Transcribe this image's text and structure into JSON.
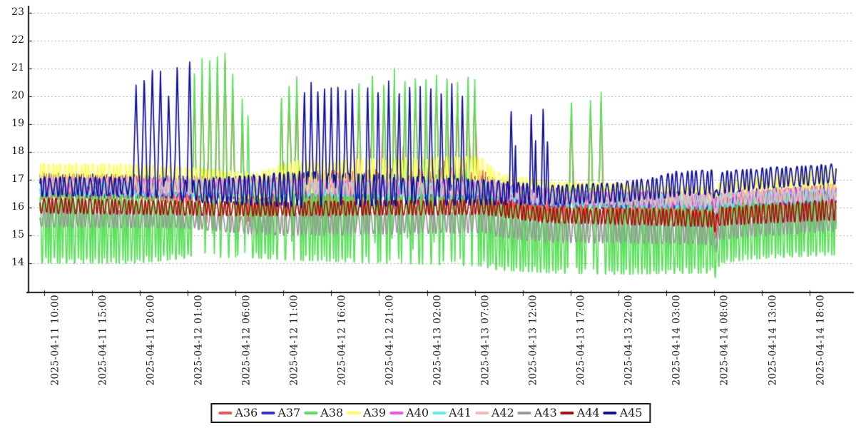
{
  "chart_data": {
    "type": "line",
    "title": "",
    "xlabel": "",
    "ylabel": "",
    "grid": "horizontal-dashed",
    "legend_position": "bottom-center",
    "ylim": [
      13.0,
      23.2
    ],
    "yticks": [
      23,
      22,
      21,
      20,
      19,
      18,
      17,
      16,
      15,
      14
    ],
    "xtick_interval_hours": 5,
    "t_range_hours": [
      -0.45,
      82.8
    ],
    "xticks": [
      "2025-04-11 10:00",
      "2025-04-11 15:00",
      "2025-04-11 20:00",
      "2025-04-12 01:00",
      "2025-04-12 06:00",
      "2025-04-12 11:00",
      "2025-04-12 16:00",
      "2025-04-12 21:00",
      "2025-04-13 02:00",
      "2025-04-13 07:00",
      "2025-04-13 12:00",
      "2025-04-13 17:00",
      "2025-04-13 22:00",
      "2025-04-14 03:00",
      "2025-04-14 08:00",
      "2025-04-14 13:00",
      "2025-04-14 18:00"
    ],
    "axis_color": "#161616",
    "gridline_color": "#ababab",
    "series": [
      {
        "name": "A36",
        "color": "#ee5555",
        "osc_period_h": 0.24,
        "phase": 0.0,
        "envelope": [
          [
            -0.5,
            16.3,
            17.2
          ],
          [
            9.5,
            16.3,
            17.15
          ],
          [
            15.0,
            16.1,
            17.0
          ],
          [
            15.5,
            15.35,
            16.6
          ],
          [
            21.3,
            15.4,
            16.6
          ],
          [
            22.0,
            15.7,
            16.9
          ],
          [
            26.5,
            15.6,
            17.3
          ],
          [
            45.5,
            15.9,
            17.45
          ],
          [
            47.5,
            15.8,
            16.9
          ],
          [
            50,
            15.6,
            16.6
          ],
          [
            53,
            15.5,
            16.5
          ],
          [
            58,
            15.5,
            16.45
          ],
          [
            65,
            15.45,
            16.35
          ],
          [
            69.9,
            15.35,
            16.25
          ],
          [
            70.2,
            14.85,
            15.6
          ],
          [
            70.55,
            15.5,
            16.4
          ],
          [
            74,
            15.65,
            16.55
          ],
          [
            78,
            15.75,
            16.7
          ],
          [
            82.8,
            15.9,
            16.85
          ]
        ],
        "spikes": [
          [
            15.7,
            20.3,
            0.28
          ],
          [
            16.5,
            20.75,
            0.28
          ],
          [
            17.3,
            20.9,
            0.28
          ],
          [
            18.1,
            21.1,
            0.28
          ],
          [
            18.9,
            21.3,
            0.28
          ],
          [
            19.7,
            20.4,
            0.28
          ],
          [
            20.7,
            19.3,
            0.26
          ],
          [
            24.8,
            19.6,
            0.28
          ],
          [
            25.6,
            20.1,
            0.28
          ],
          [
            26.4,
            20.25,
            0.28
          ],
          [
            32.9,
            20.2,
            0.26
          ],
          [
            34.3,
            20.45,
            0.26
          ],
          [
            35.5,
            20.2,
            0.26
          ],
          [
            36.6,
            20.5,
            0.26
          ],
          [
            37.7,
            20.3,
            0.26
          ],
          [
            38.8,
            20.45,
            0.26
          ],
          [
            39.9,
            20.2,
            0.26
          ],
          [
            41.0,
            20.55,
            0.26
          ],
          [
            42.1,
            20.35,
            0.26
          ],
          [
            43.2,
            20.1,
            0.26
          ],
          [
            44.3,
            20.4,
            0.26
          ],
          [
            45.0,
            20.2,
            0.26
          ],
          [
            55.1,
            19.55,
            0.3
          ],
          [
            57.1,
            19.7,
            0.3
          ],
          [
            58.2,
            19.8,
            0.3
          ]
        ]
      },
      {
        "name": "A37",
        "color": "#3535cd",
        "osc_period_h": 0.5,
        "phase": 1.1,
        "envelope": [
          [
            -0.5,
            16.35,
            17.25
          ],
          [
            21,
            16.3,
            17.1
          ],
          [
            26.5,
            16.35,
            17.25
          ],
          [
            46,
            16.3,
            17.15
          ],
          [
            50,
            16.1,
            16.8
          ],
          [
            53,
            16.0,
            16.7
          ],
          [
            69.9,
            15.9,
            16.55
          ],
          [
            70.2,
            15.5,
            16.2
          ],
          [
            70.6,
            15.95,
            16.6
          ],
          [
            82.8,
            16.15,
            16.85
          ]
        ],
        "spikes": []
      },
      {
        "name": "A38",
        "color": "#5ce05c",
        "osc_period_h": 0.31,
        "phase": 2.3,
        "envelope": [
          [
            -0.5,
            14.0,
            16.6
          ],
          [
            9.5,
            14.0,
            16.55
          ],
          [
            15.4,
            14.2,
            16.2
          ],
          [
            21.5,
            14.2,
            16.3
          ],
          [
            26.5,
            14.1,
            16.9
          ],
          [
            45.5,
            13.9,
            17.0
          ],
          [
            47.5,
            13.75,
            16.2
          ],
          [
            53,
            13.65,
            16.0
          ],
          [
            60,
            13.6,
            16.05
          ],
          [
            69.9,
            13.65,
            16.1
          ],
          [
            70.2,
            13.45,
            14.7
          ],
          [
            70.75,
            14.0,
            16.25
          ],
          [
            74,
            14.15,
            16.4
          ],
          [
            82.8,
            14.3,
            16.6
          ]
        ],
        "spikes": [
          [
            15.7,
            21.0,
            0.3
          ],
          [
            16.5,
            21.35,
            0.3
          ],
          [
            17.3,
            21.5,
            0.3
          ],
          [
            18.1,
            21.7,
            0.3
          ],
          [
            18.9,
            21.55,
            0.3
          ],
          [
            19.7,
            21.05,
            0.3
          ],
          [
            20.7,
            19.9,
            0.28
          ],
          [
            21.3,
            19.3,
            0.25
          ],
          [
            24.8,
            20.1,
            0.3
          ],
          [
            25.6,
            20.6,
            0.3
          ],
          [
            26.4,
            20.7,
            0.3
          ],
          [
            32.9,
            20.7,
            0.28
          ],
          [
            34.3,
            20.9,
            0.28
          ],
          [
            35.5,
            20.6,
            0.28
          ],
          [
            36.6,
            21.0,
            0.28
          ],
          [
            37.7,
            20.7,
            0.28
          ],
          [
            38.8,
            20.9,
            0.28
          ],
          [
            39.9,
            20.6,
            0.28
          ],
          [
            41.0,
            21.05,
            0.28
          ],
          [
            42.1,
            20.8,
            0.28
          ],
          [
            43.2,
            20.5,
            0.28
          ],
          [
            44.3,
            20.85,
            0.28
          ],
          [
            45.0,
            20.6,
            0.28
          ],
          [
            55.1,
            19.9,
            0.35
          ],
          [
            57.1,
            20.05,
            0.32
          ],
          [
            58.2,
            20.15,
            0.32
          ]
        ]
      },
      {
        "name": "A39",
        "color": "#ffff55",
        "osc_period_h": 0.42,
        "phase": 0.7,
        "envelope": [
          [
            -0.5,
            16.75,
            17.6
          ],
          [
            9.5,
            16.75,
            17.55
          ],
          [
            15.4,
            16.5,
            17.45
          ],
          [
            21.8,
            16.3,
            17.25
          ],
          [
            26.5,
            16.45,
            17.7
          ],
          [
            45.5,
            16.9,
            17.85
          ],
          [
            47.5,
            16.55,
            17.25
          ],
          [
            50,
            16.4,
            17.1
          ],
          [
            53,
            16.3,
            16.95
          ],
          [
            58,
            16.25,
            16.9
          ],
          [
            65,
            16.2,
            16.8
          ],
          [
            69.9,
            16.15,
            16.75
          ],
          [
            70.2,
            15.95,
            16.5
          ],
          [
            70.6,
            16.3,
            16.95
          ],
          [
            74,
            16.45,
            17.1
          ],
          [
            82.8,
            16.6,
            17.4
          ]
        ],
        "spikes": []
      },
      {
        "name": "A40",
        "color": "#ee55ee",
        "osc_period_h": 0.55,
        "phase": 3.1,
        "envelope": [
          [
            -0.5,
            16.5,
            17.05
          ],
          [
            46,
            16.4,
            16.95
          ],
          [
            53,
            16.1,
            16.6
          ],
          [
            69.9,
            16.0,
            16.5
          ],
          [
            70.2,
            15.8,
            16.35
          ],
          [
            70.6,
            16.05,
            16.55
          ],
          [
            82.8,
            16.2,
            16.75
          ]
        ],
        "spikes": []
      },
      {
        "name": "A41",
        "color": "#66eeee",
        "osc_period_h": 0.6,
        "phase": 4.2,
        "envelope": [
          [
            -0.5,
            16.45,
            16.95
          ],
          [
            46,
            16.35,
            16.9
          ],
          [
            53,
            16.05,
            16.55
          ],
          [
            69.9,
            15.95,
            16.45
          ],
          [
            70.2,
            15.75,
            16.3
          ],
          [
            70.6,
            16.0,
            16.5
          ],
          [
            82.8,
            16.15,
            16.7
          ]
        ],
        "spikes": []
      },
      {
        "name": "A42",
        "color": "#f4b8b8",
        "osc_period_h": 0.52,
        "phase": 5.0,
        "envelope": [
          [
            -0.5,
            16.55,
            17.1
          ],
          [
            46,
            16.45,
            17.0
          ],
          [
            53,
            16.15,
            16.65
          ],
          [
            69.9,
            16.05,
            16.55
          ],
          [
            70.2,
            15.85,
            16.4
          ],
          [
            70.6,
            16.1,
            16.6
          ],
          [
            82.8,
            16.25,
            16.8
          ]
        ],
        "spikes": []
      },
      {
        "name": "A43",
        "color": "#999999",
        "osc_period_h": 0.47,
        "phase": 2.9,
        "envelope": [
          [
            -0.5,
            15.3,
            15.95
          ],
          [
            15,
            15.25,
            15.85
          ],
          [
            21.5,
            15.05,
            15.7
          ],
          [
            26.5,
            15.0,
            15.8
          ],
          [
            46,
            15.1,
            15.9
          ],
          [
            48,
            14.9,
            15.65
          ],
          [
            53,
            14.75,
            15.55
          ],
          [
            65,
            14.7,
            15.5
          ],
          [
            69.9,
            14.65,
            15.45
          ],
          [
            70.2,
            14.35,
            14.95
          ],
          [
            70.6,
            14.85,
            15.6
          ],
          [
            76,
            15.0,
            15.75
          ],
          [
            82.8,
            15.15,
            15.95
          ]
        ],
        "spikes": []
      },
      {
        "name": "A44",
        "color": "#aa0f0f",
        "osc_period_h": 0.44,
        "phase": 1.9,
        "envelope": [
          [
            -0.5,
            15.8,
            16.35
          ],
          [
            21.5,
            15.7,
            16.2
          ],
          [
            46,
            15.75,
            16.3
          ],
          [
            50,
            15.55,
            16.1
          ],
          [
            53,
            15.45,
            16.0
          ],
          [
            65,
            15.35,
            15.95
          ],
          [
            69.9,
            15.3,
            15.9
          ],
          [
            70.2,
            15.0,
            15.75
          ],
          [
            70.6,
            15.35,
            16.0
          ],
          [
            76,
            15.45,
            16.15
          ],
          [
            82.8,
            15.55,
            16.3
          ]
        ],
        "spikes": []
      },
      {
        "name": "A45",
        "color": "#101099",
        "osc_period_h": 0.52,
        "phase": 0.4,
        "envelope": [
          [
            -0.5,
            16.4,
            17.1
          ],
          [
            9.3,
            16.45,
            17.1
          ],
          [
            15.5,
            16.2,
            17.0
          ],
          [
            26.5,
            16.0,
            17.3
          ],
          [
            46,
            16.1,
            17.0
          ],
          [
            53,
            16.1,
            16.8
          ],
          [
            60,
            16.2,
            16.9
          ],
          [
            64,
            16.3,
            17.1
          ],
          [
            66,
            16.4,
            17.3
          ],
          [
            69.9,
            16.5,
            17.35
          ],
          [
            70.2,
            15.95,
            16.6
          ],
          [
            70.6,
            16.5,
            17.3
          ],
          [
            76,
            16.7,
            17.45
          ],
          [
            80,
            16.8,
            17.5
          ],
          [
            82.8,
            16.85,
            17.6
          ]
        ],
        "spikes": [
          [
            9.6,
            20.4,
            0.32
          ],
          [
            10.45,
            20.7,
            0.32
          ],
          [
            11.3,
            21.1,
            0.32
          ],
          [
            12.15,
            20.9,
            0.32
          ],
          [
            13.0,
            20.15,
            0.3
          ],
          [
            13.9,
            21.2,
            0.32
          ],
          [
            15.2,
            21.4,
            0.3
          ],
          [
            27.2,
            20.3,
            0.25
          ],
          [
            27.9,
            20.5,
            0.25
          ],
          [
            28.6,
            20.35,
            0.25
          ],
          [
            29.3,
            20.45,
            0.25
          ],
          [
            30.0,
            20.3,
            0.25
          ],
          [
            30.7,
            20.5,
            0.25
          ],
          [
            31.5,
            20.2,
            0.25
          ],
          [
            32.2,
            20.45,
            0.25
          ],
          [
            33.8,
            20.5,
            0.22
          ],
          [
            34.9,
            20.3,
            0.22
          ],
          [
            36.0,
            20.55,
            0.22
          ],
          [
            37.1,
            20.3,
            0.22
          ],
          [
            38.2,
            20.5,
            0.22
          ],
          [
            39.3,
            20.35,
            0.22
          ],
          [
            40.4,
            20.5,
            0.22
          ],
          [
            41.5,
            20.3,
            0.22
          ],
          [
            42.6,
            20.45,
            0.22
          ],
          [
            43.7,
            20.2,
            0.22
          ],
          [
            48.8,
            19.6,
            0.22
          ],
          [
            49.25,
            18.4,
            0.15
          ],
          [
            50.9,
            19.5,
            0.2
          ],
          [
            51.35,
            18.6,
            0.15
          ],
          [
            52.15,
            19.7,
            0.2
          ],
          [
            52.6,
            18.5,
            0.15
          ]
        ]
      }
    ]
  }
}
